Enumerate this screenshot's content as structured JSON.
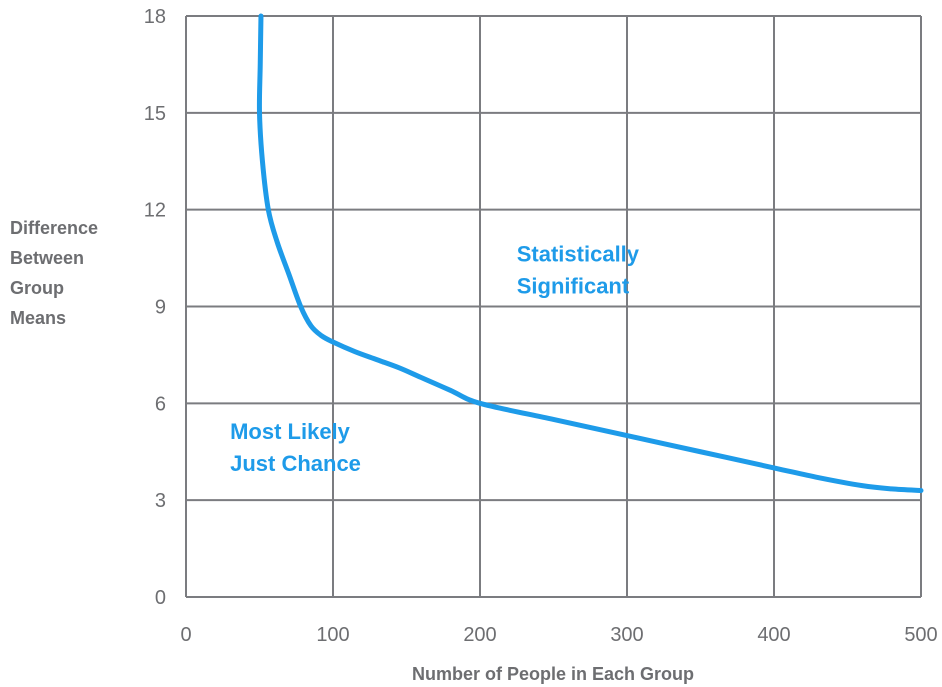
{
  "chart_data": {
    "type": "line",
    "title": "",
    "xlabel": "Number of People in Each Group",
    "ylabel_lines": [
      "Difference",
      "Between",
      "Group",
      "Means"
    ],
    "xlim": [
      0,
      500
    ],
    "ylim": [
      0,
      18
    ],
    "x_ticks": [
      0,
      100,
      200,
      300,
      400,
      500
    ],
    "y_ticks": [
      0,
      3,
      6,
      9,
      12,
      15,
      18
    ],
    "grid": true,
    "series": [
      {
        "color": "#1e9be9",
        "x": [
          51,
          50.5,
          50,
          52,
          56,
          62,
          70,
          78,
          85,
          92,
          100,
          115,
          130,
          145,
          160,
          180,
          200,
          250,
          300,
          350,
          400,
          430,
          460,
          480,
          500
        ],
        "y": [
          18,
          16.5,
          15,
          13.5,
          12,
          11,
          10,
          9,
          8.4,
          8.1,
          7.9,
          7.6,
          7.35,
          7.1,
          6.8,
          6.4,
          6.0,
          5.5,
          5.0,
          4.5,
          4.0,
          3.7,
          3.45,
          3.35,
          3.3
        ]
      }
    ],
    "annotations": [
      {
        "lines": [
          "Statistically",
          "Significant"
        ],
        "x": 225,
        "y": 10.4
      },
      {
        "lines": [
          "Most Likely",
          "Just Chance"
        ],
        "x": 30,
        "y": 4.9
      }
    ],
    "colors": {
      "curve": "#1e9be9",
      "annotation": "#1e9be9",
      "grid": "#7b7c80",
      "text": "#6d6e71"
    }
  }
}
